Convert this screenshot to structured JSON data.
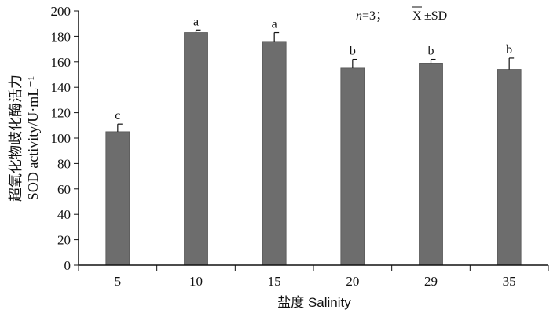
{
  "chart_data": {
    "type": "bar",
    "categories": [
      "5",
      "10",
      "15",
      "20",
      "29",
      "35"
    ],
    "values": [
      105,
      183,
      176,
      155,
      159,
      154
    ],
    "errors": [
      6,
      2,
      7,
      7,
      3,
      9
    ],
    "significance_labels": [
      "c",
      "a",
      "a",
      "b",
      "b",
      "b"
    ],
    "xlabel": "盐度 Salinity",
    "ylabel_line1": "超氧化物歧化酶活力",
    "ylabel_line2": "SOD activity/U·mL⁻¹",
    "ylim": [
      0,
      200
    ],
    "yticks": [
      0,
      20,
      40,
      60,
      80,
      100,
      120,
      140,
      160,
      180,
      200
    ],
    "grid": false,
    "bar_color": "#6d6d6d",
    "annotation": {
      "n_label": "n",
      "n_rest": "=3；",
      "mean_symbol": "X",
      "stat_text": "±SD"
    }
  }
}
